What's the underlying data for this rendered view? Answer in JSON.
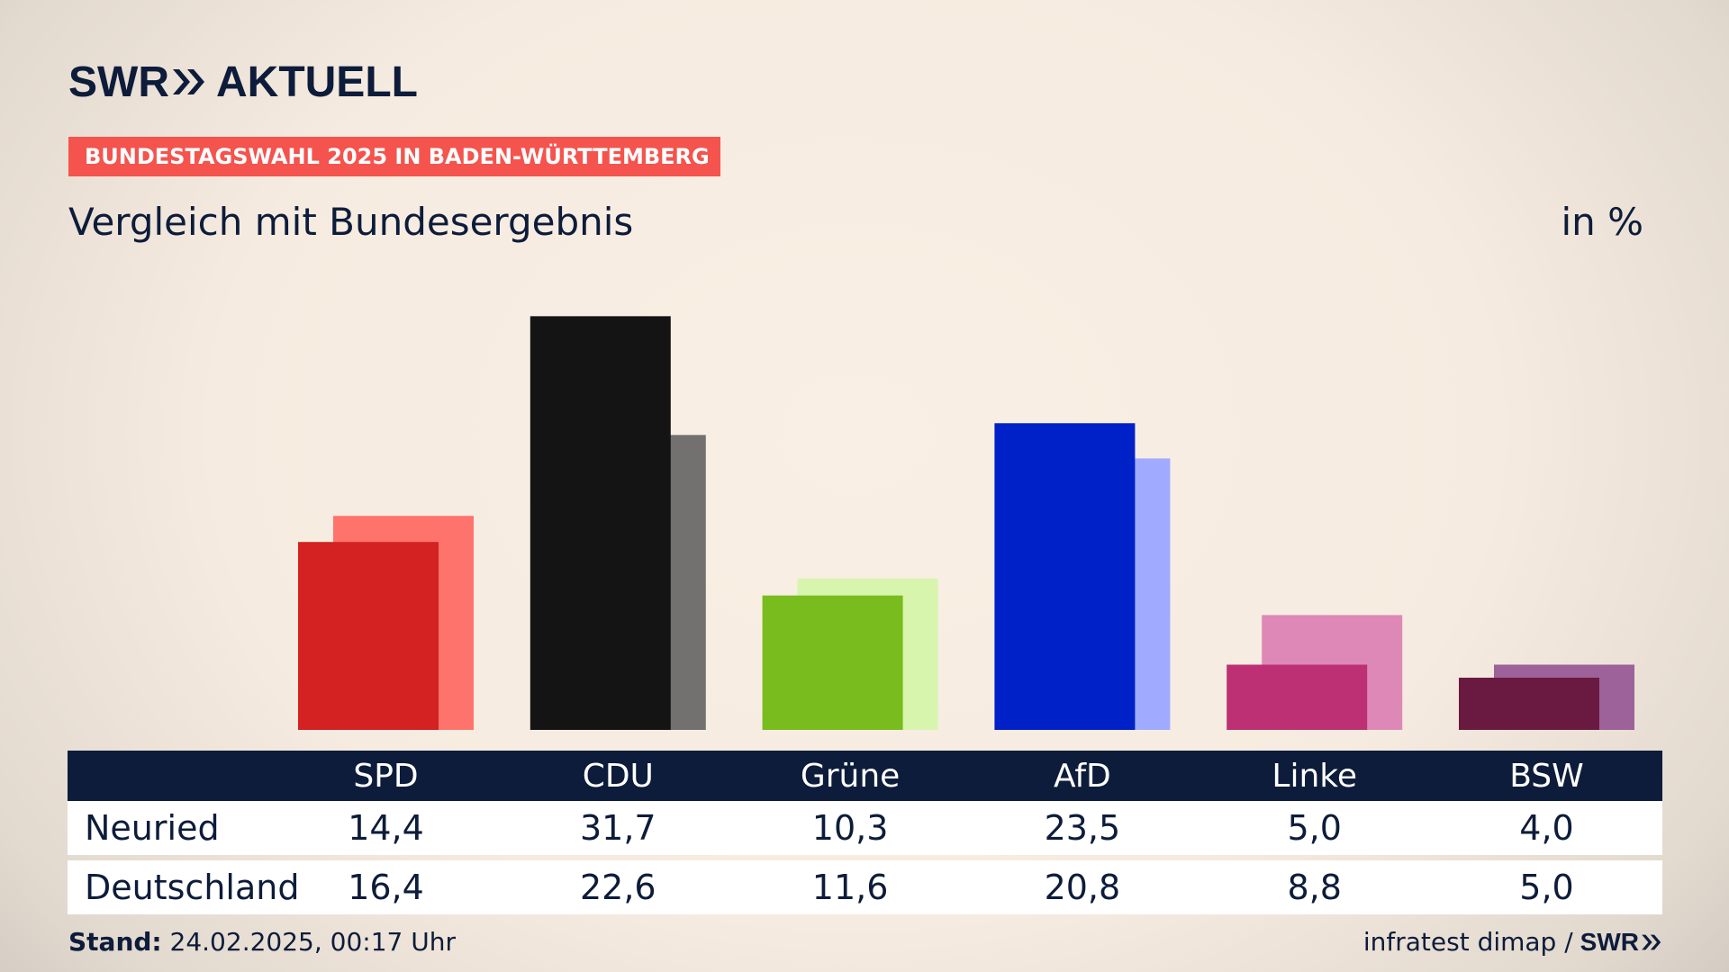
{
  "header": {
    "brand": "SWR",
    "brand_suffix": "AKTUELL",
    "badge": "BUNDESTAGSWAHL 2025 IN BADEN-WÜRTTEMBERG",
    "subtitle": "Vergleich mit Bundesergebnis",
    "unit": "in %"
  },
  "table": {
    "rows": [
      {
        "label": "Neuried",
        "values": [
          "14,4",
          "31,7",
          "10,3",
          "23,5",
          "5,0",
          "4,0"
        ]
      },
      {
        "label": "Deutschland",
        "values": [
          "16,4",
          "22,6",
          "11,6",
          "20,8",
          "8,8",
          "5,0"
        ]
      }
    ]
  },
  "footer": {
    "stand_label": "Stand:",
    "stand_value": "24.02.2025, 00:17 Uhr",
    "source": "infratest dimap /",
    "source_brand": "SWR"
  },
  "chart_data": {
    "type": "bar",
    "categories": [
      "SPD",
      "CDU",
      "Grüne",
      "AfD",
      "Linke",
      "BSW"
    ],
    "series": [
      {
        "name": "Neuried",
        "values": [
          14.4,
          31.7,
          10.3,
          23.5,
          5.0,
          4.0
        ]
      },
      {
        "name": "Deutschland",
        "values": [
          16.4,
          22.6,
          11.6,
          20.8,
          8.8,
          5.0
        ]
      }
    ],
    "colors": {
      "front": [
        "#d42121",
        "#141414",
        "#79bc1e",
        "#0021c8",
        "#bd3174",
        "#6a1a40"
      ],
      "back": [
        "#ff736d",
        "#72716f",
        "#d8f5ad",
        "#a0abff",
        "#de88b7",
        "#9c6299"
      ]
    },
    "grid": false,
    "title": "Vergleich mit Bundesergebnis",
    "ylabel": "in %"
  }
}
